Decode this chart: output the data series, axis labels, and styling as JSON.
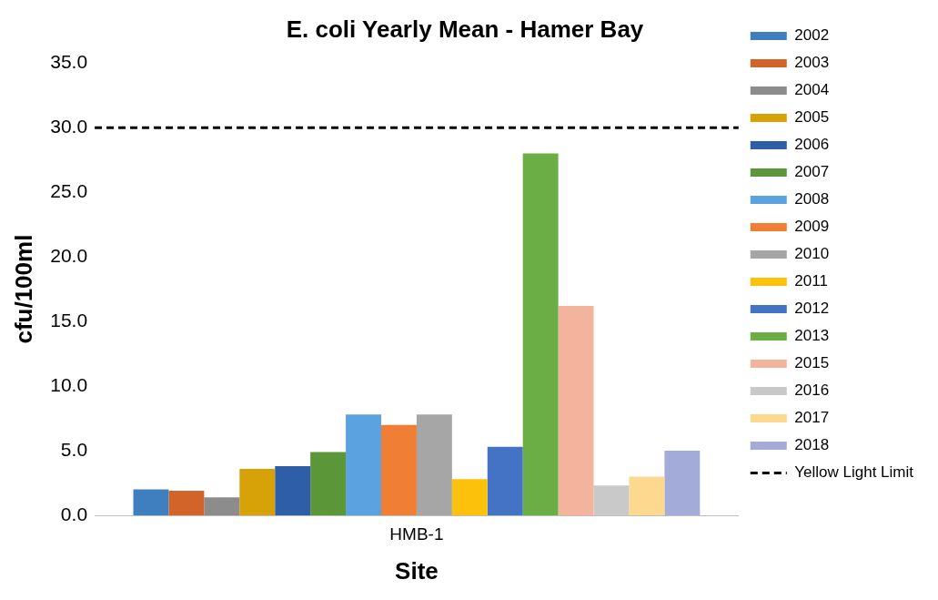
{
  "chart_data": {
    "type": "bar",
    "title": "E. coli Yearly Mean - Hamer Bay",
    "xlabel": "Site",
    "ylabel": "cfu/100ml",
    "categories": [
      "HMB-1"
    ],
    "series": [
      {
        "name": "2002",
        "color": "#3f7fbf",
        "values": [
          2.0
        ]
      },
      {
        "name": "2003",
        "color": "#d2642a",
        "values": [
          1.9
        ]
      },
      {
        "name": "2004",
        "color": "#8c8c8c",
        "values": [
          1.4
        ]
      },
      {
        "name": "2005",
        "color": "#d7a208",
        "values": [
          3.6
        ]
      },
      {
        "name": "2006",
        "color": "#2f5ea8",
        "values": [
          3.8
        ]
      },
      {
        "name": "2007",
        "color": "#5b9639",
        "values": [
          4.9
        ]
      },
      {
        "name": "2008",
        "color": "#5aa2e0",
        "values": [
          7.8
        ]
      },
      {
        "name": "2009",
        "color": "#f07e35",
        "values": [
          7.0
        ]
      },
      {
        "name": "2010",
        "color": "#a6a6a6",
        "values": [
          7.8
        ]
      },
      {
        "name": "2011",
        "color": "#fcc10a",
        "values": [
          2.8
        ]
      },
      {
        "name": "2012",
        "color": "#4472c4",
        "values": [
          5.3
        ]
      },
      {
        "name": "2013",
        "color": "#6aae45",
        "values": [
          28.0
        ]
      },
      {
        "name": "2015",
        "color": "#f4b39c",
        "values": [
          16.2
        ]
      },
      {
        "name": "2016",
        "color": "#c9c9c9",
        "values": [
          2.3
        ]
      },
      {
        "name": "2017",
        "color": "#fdd990",
        "values": [
          3.0
        ]
      },
      {
        "name": "2018",
        "color": "#a3acd9",
        "values": [
          5.0
        ]
      }
    ],
    "ylim": [
      0,
      35
    ],
    "yticks": [
      {
        "value": 0,
        "label": "0.0"
      },
      {
        "value": 5,
        "label": "5.0"
      },
      {
        "value": 10,
        "label": "10.0"
      },
      {
        "value": 15,
        "label": "15.0"
      },
      {
        "value": 20,
        "label": "20.0"
      },
      {
        "value": 25,
        "label": "25.0"
      },
      {
        "value": 30,
        "label": "30.0"
      },
      {
        "value": 35,
        "label": "35.0"
      }
    ],
    "ref_lines": [
      {
        "axis": "y",
        "value": 30,
        "label": "Yellow Light Limit",
        "color": "#000000",
        "line_style": "dashed"
      }
    ],
    "legend": "right"
  }
}
